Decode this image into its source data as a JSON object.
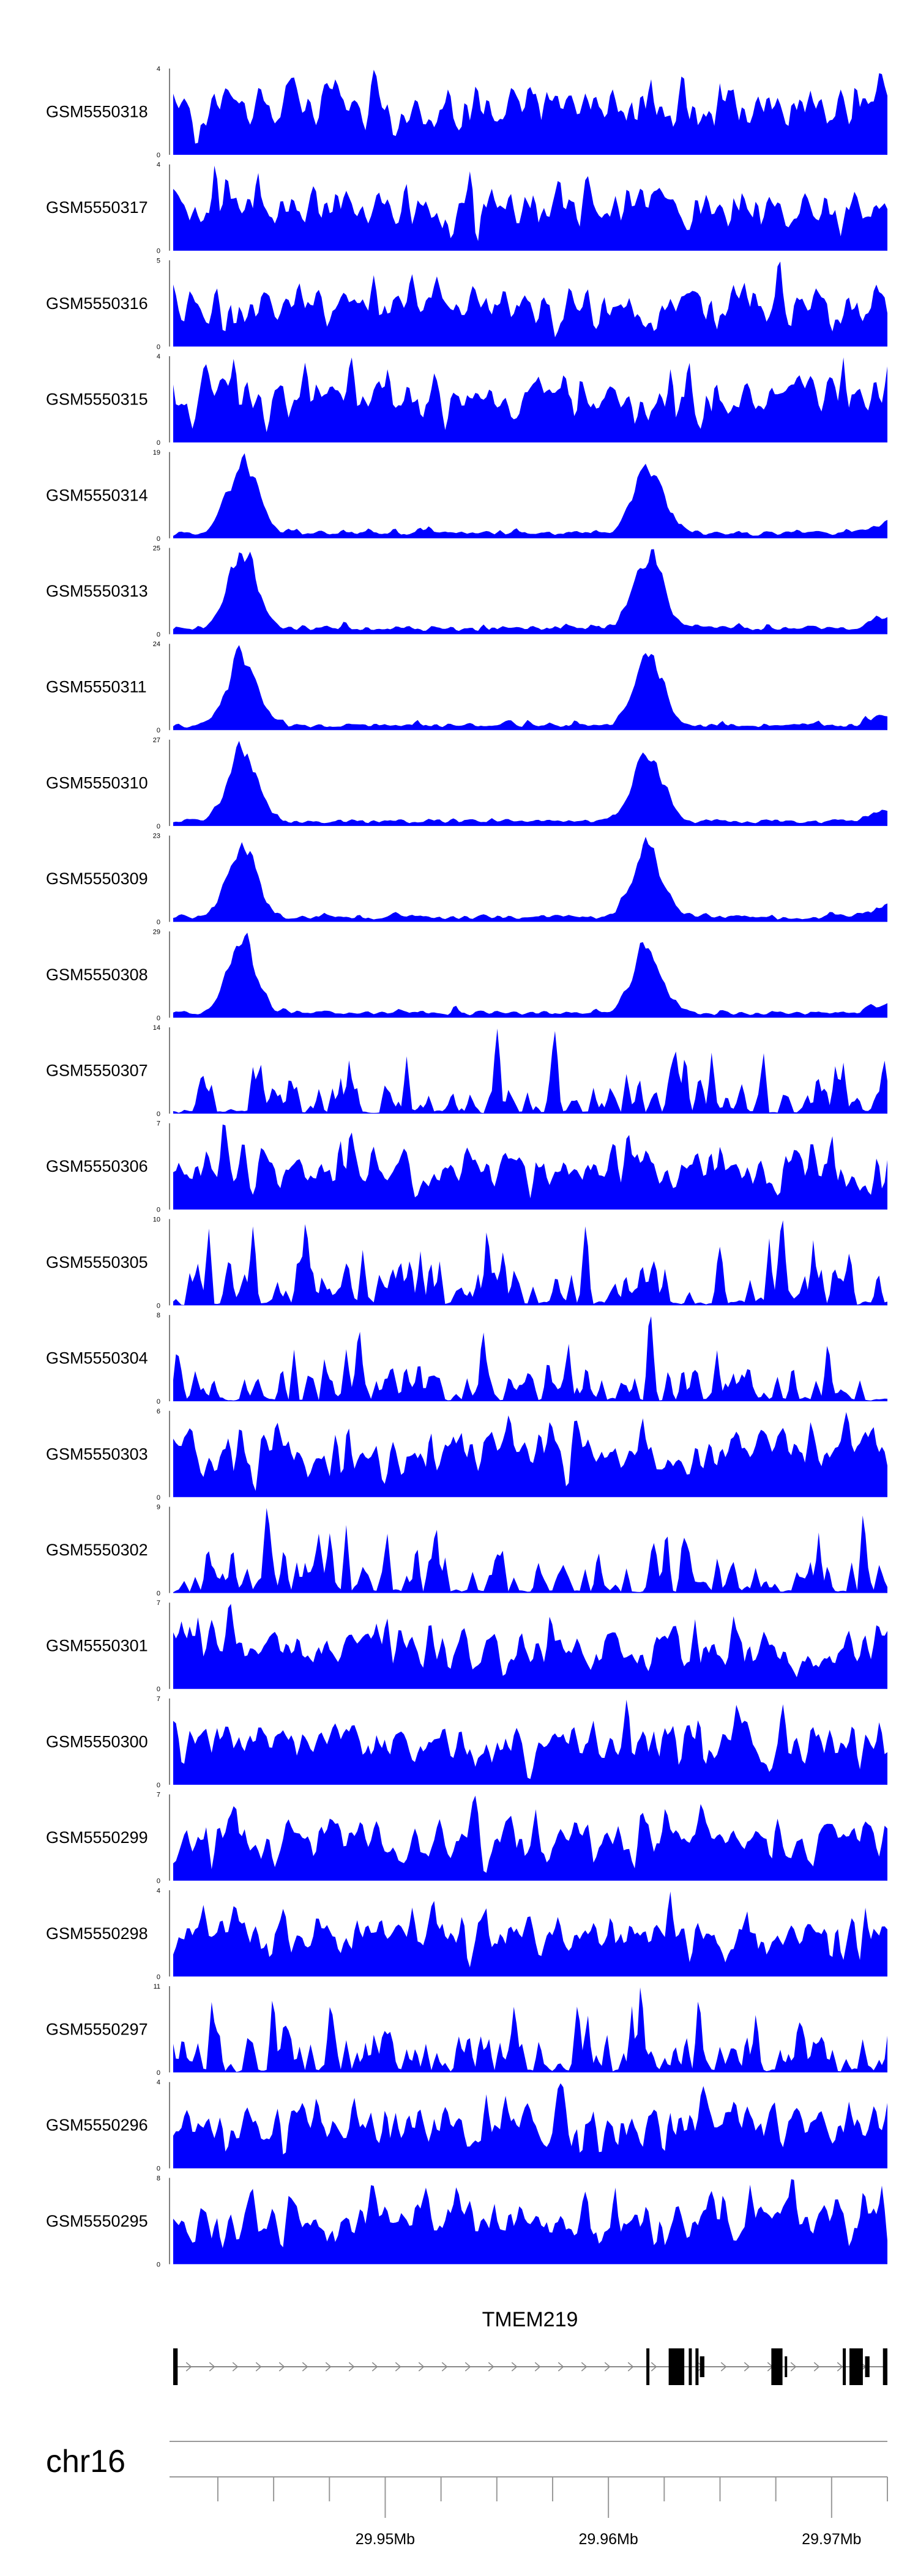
{
  "chart_data": {
    "type": "area",
    "title": "",
    "color": "#0000ff",
    "x_range_mb": [
      29.9405,
      29.9725
    ],
    "tracks": [
      {
        "name": "GSM5550318",
        "ymax": 4,
        "ymin": 0,
        "profile": "noise"
      },
      {
        "name": "GSM5550317",
        "ymax": 4,
        "ymin": 0,
        "profile": "noise"
      },
      {
        "name": "GSM5550316",
        "ymax": 5,
        "ymin": 0,
        "profile": "noise"
      },
      {
        "name": "GSM5550315",
        "ymax": 4,
        "ymin": 0,
        "profile": "noise"
      },
      {
        "name": "GSM5550314",
        "ymax": 19,
        "ymin": 0,
        "profile": "peaks"
      },
      {
        "name": "GSM5550313",
        "ymax": 25,
        "ymin": 0,
        "profile": "peaks"
      },
      {
        "name": "GSM5550311",
        "ymax": 24,
        "ymin": 0,
        "profile": "peaks"
      },
      {
        "name": "GSM5550310",
        "ymax": 27,
        "ymin": 0,
        "profile": "peaks"
      },
      {
        "name": "GSM5550309",
        "ymax": 23,
        "ymin": 0,
        "profile": "peaks"
      },
      {
        "name": "GSM5550308",
        "ymax": 29,
        "ymin": 0,
        "profile": "peaks"
      },
      {
        "name": "GSM5550307",
        "ymax": 14,
        "ymin": 0,
        "profile": "sparse"
      },
      {
        "name": "GSM5550306",
        "ymax": 7,
        "ymin": 0,
        "profile": "noise"
      },
      {
        "name": "GSM5550305",
        "ymax": 10,
        "ymin": 0,
        "profile": "sparse"
      },
      {
        "name": "GSM5550304",
        "ymax": 8,
        "ymin": 0,
        "profile": "sparse"
      },
      {
        "name": "GSM5550303",
        "ymax": 6,
        "ymin": 0,
        "profile": "noise"
      },
      {
        "name": "GSM5550302",
        "ymax": 9,
        "ymin": 0,
        "profile": "sparse"
      },
      {
        "name": "GSM5550301",
        "ymax": 7,
        "ymin": 0,
        "profile": "noise"
      },
      {
        "name": "GSM5550300",
        "ymax": 7,
        "ymin": 0,
        "profile": "noise"
      },
      {
        "name": "GSM5550299",
        "ymax": 7,
        "ymin": 0,
        "profile": "noise"
      },
      {
        "name": "GSM5550298",
        "ymax": 4,
        "ymin": 0,
        "profile": "noise"
      },
      {
        "name": "GSM5550297",
        "ymax": 11,
        "ymin": 0,
        "profile": "sparse"
      },
      {
        "name": "GSM5550296",
        "ymax": 4,
        "ymin": 0,
        "profile": "noise"
      },
      {
        "name": "GSM5550295",
        "ymax": 8,
        "ymin": 0,
        "profile": "noise"
      }
    ],
    "peaks_mb": [
      29.9436,
      29.9618
    ],
    "gene": {
      "name": "TMEM219",
      "strand": "+",
      "exons_mb": [
        [
          29.9405,
          29.9407
        ],
        [
          29.9617,
          29.9618
        ],
        [
          29.9627,
          29.9634
        ],
        [
          29.9636,
          29.9637
        ],
        [
          29.9639,
          29.964
        ],
        [
          29.9673,
          29.9678
        ],
        [
          29.9705,
          29.9706
        ],
        [
          29.9708,
          29.9714
        ],
        [
          29.9723,
          29.9725
        ]
      ],
      "utr_mb": [
        [
          29.9641,
          29.9643
        ],
        [
          29.9679,
          29.968
        ],
        [
          29.9715,
          29.9717
        ]
      ]
    },
    "axis": {
      "chromosome": "chr16",
      "minor_ticks_mb": [
        29.9425,
        29.945,
        29.9475,
        29.95,
        29.9525,
        29.955,
        29.9575,
        29.96,
        29.9625,
        29.965,
        29.9675,
        29.97,
        29.9725
      ],
      "major_ticks_mb": [
        29.95,
        29.96,
        29.97
      ],
      "tick_labels": [
        "29.95Mb",
        "29.96Mb",
        "29.97Mb"
      ]
    }
  }
}
